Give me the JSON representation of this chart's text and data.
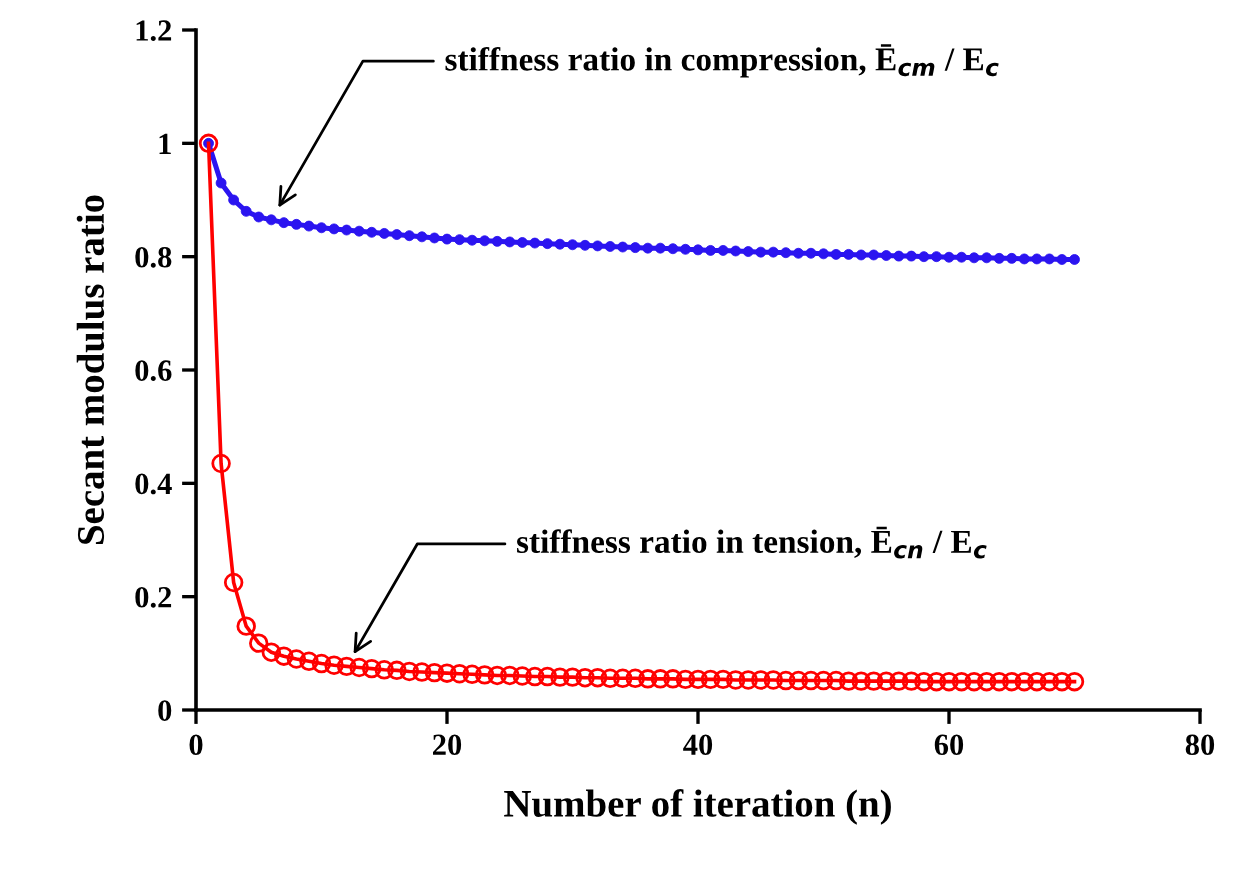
{
  "chart_data": {
    "type": "line",
    "xlabel": "Number of iteration (n)",
    "ylabel": "Secant modulus ratio",
    "xlim": [
      0,
      80
    ],
    "xticks": [
      0,
      20,
      40,
      60,
      80
    ],
    "ylim": [
      0,
      1.2
    ],
    "yticks": [
      0,
      0.2,
      0.4,
      0.6,
      0.8,
      1,
      1.2
    ],
    "grid": false,
    "legend": false,
    "marker": "circle",
    "line_style": "solid",
    "x": [
      1,
      2,
      3,
      4,
      5,
      6,
      7,
      8,
      9,
      10,
      11,
      12,
      13,
      14,
      15,
      16,
      17,
      18,
      19,
      20,
      21,
      22,
      23,
      24,
      25,
      26,
      27,
      28,
      29,
      30,
      31,
      32,
      33,
      34,
      35,
      36,
      37,
      38,
      39,
      40,
      41,
      42,
      43,
      44,
      45,
      46,
      47,
      48,
      49,
      50,
      51,
      52,
      53,
      54,
      55,
      56,
      57,
      58,
      59,
      60,
      61,
      62,
      63,
      64,
      65,
      66,
      67,
      68,
      69,
      70
    ],
    "series": [
      {
        "color": "#2b14f0",
        "values": [
          1,
          0.93,
          0.9,
          0.88,
          0.87,
          0.865,
          0.86,
          0.857,
          0.854,
          0.851,
          0.849,
          0.847,
          0.845,
          0.843,
          0.841,
          0.839,
          0.837,
          0.835,
          0.833,
          0.831,
          0.83,
          0.829,
          0.828,
          0.827,
          0.826,
          0.825,
          0.824,
          0.823,
          0.822,
          0.821,
          0.82,
          0.819,
          0.818,
          0.817,
          0.816,
          0.815,
          0.815,
          0.814,
          0.813,
          0.812,
          0.811,
          0.811,
          0.81,
          0.809,
          0.808,
          0.808,
          0.807,
          0.806,
          0.806,
          0.805,
          0.804,
          0.804,
          0.803,
          0.803,
          0.802,
          0.801,
          0.801,
          0.8,
          0.8,
          0.799,
          0.799,
          0.798,
          0.798,
          0.797,
          0.797,
          0.796,
          0.796,
          0.796,
          0.795,
          0.795
        ]
      },
      {
        "color": "#ff0000",
        "values": [
          1,
          0.435,
          0.225,
          0.148,
          0.118,
          0.102,
          0.095,
          0.09,
          0.086,
          0.082,
          0.079,
          0.077,
          0.075,
          0.073,
          0.071,
          0.07,
          0.068,
          0.067,
          0.066,
          0.065,
          0.064,
          0.063,
          0.062,
          0.061,
          0.061,
          0.06,
          0.059,
          0.059,
          0.058,
          0.058,
          0.057,
          0.057,
          0.056,
          0.056,
          0.056,
          0.055,
          0.055,
          0.055,
          0.054,
          0.054,
          0.054,
          0.054,
          0.053,
          0.053,
          0.053,
          0.053,
          0.052,
          0.052,
          0.052,
          0.052,
          0.052,
          0.051,
          0.051,
          0.051,
          0.051,
          0.051,
          0.051,
          0.05,
          0.05,
          0.05,
          0.05,
          0.05,
          0.05,
          0.05,
          0.05,
          0.05,
          0.05,
          0.05,
          0.05,
          0.05
        ]
      }
    ],
    "annotations": [
      {
        "text": "stiffness ratio in compression, Ē$_{cm}$ / E$_{c}$",
        "x": 6,
        "y": 0.865
      },
      {
        "text": "stiffness ratio in tension, Ē$_{cn}$ / E$_{c}$",
        "x": 12,
        "y": 0.077
      }
    ]
  }
}
